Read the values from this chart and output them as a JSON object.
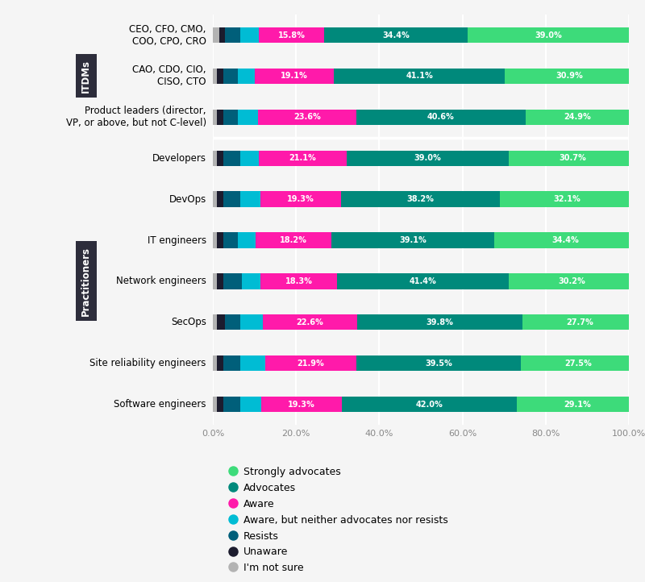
{
  "row_labels": [
    "CEO, CFO, CMO,\nCOO, CPO, CRO",
    "CAO, CDO, CIO,\nCISO, CTO",
    "Product leaders (director,\nVP, or above, but not C-level)",
    "Developers",
    "DevOps",
    "IT engineers",
    "Network engineers",
    "SecOps",
    "Site reliability engineers",
    "Software engineers"
  ],
  "segment_labels_ordered": [
    "Strongly advocates",
    "Advocates",
    "Aware",
    "Aware, but neither advocates nor resists",
    "Resists",
    "Unaware",
    "I'm not sure"
  ],
  "segment_colors_ordered": [
    "#3ddb7a",
    "#00897b",
    "#ff1aaa",
    "#00bcd4",
    "#005f7a",
    "#1c1c2e",
    "#b3b3b3"
  ],
  "segment_labels_bar_order": [
    "I'm not sure",
    "Unaware",
    "Resists",
    "Aware, but neither advocates nor resists",
    "Aware",
    "Advocates",
    "Strongly advocates"
  ],
  "segment_colors_bar_order": [
    "#b3b3b3",
    "#1c1c2e",
    "#005f7a",
    "#00bcd4",
    "#ff1aaa",
    "#00897b",
    "#3ddb7a"
  ],
  "data": [
    [
      1.5,
      1.5,
      3.5,
      4.5,
      15.8,
      34.4,
      39.0
    ],
    [
      1.0,
      1.5,
      3.5,
      4.0,
      19.1,
      41.1,
      30.9
    ],
    [
      1.0,
      1.5,
      3.5,
      4.9,
      23.6,
      40.6,
      24.9
    ],
    [
      1.0,
      1.5,
      4.0,
      4.5,
      21.1,
      39.0,
      30.7
    ],
    [
      1.0,
      1.5,
      4.0,
      5.0,
      19.3,
      38.2,
      32.1
    ],
    [
      1.0,
      1.5,
      3.5,
      4.3,
      18.2,
      39.1,
      34.4
    ],
    [
      1.0,
      1.5,
      4.5,
      4.5,
      18.3,
      41.4,
      30.2
    ],
    [
      1.0,
      2.0,
      3.5,
      5.5,
      22.6,
      39.8,
      27.7
    ],
    [
      1.0,
      1.5,
      4.0,
      6.1,
      21.9,
      39.5,
      27.5
    ],
    [
      1.0,
      1.5,
      4.0,
      5.2,
      19.3,
      42.0,
      29.1
    ]
  ],
  "labeled_segments_idx": [
    4,
    5,
    6
  ],
  "group_label_itdms": "ITDMs",
  "group_label_practitioners": "Practitioners",
  "group_color": "#2d2d3b",
  "itdm_rows": [
    0,
    1,
    2
  ],
  "practitioner_rows": [
    3,
    4,
    5,
    6,
    7,
    8,
    9
  ],
  "bg_color": "#f5f5f5",
  "bar_height": 0.38,
  "xtick_vals": [
    0,
    20,
    40,
    60,
    80,
    100
  ],
  "xtick_labels": [
    "0.0%",
    "20.0%",
    "40.0%",
    "60.0%",
    "80.0%",
    "100.0%"
  ]
}
